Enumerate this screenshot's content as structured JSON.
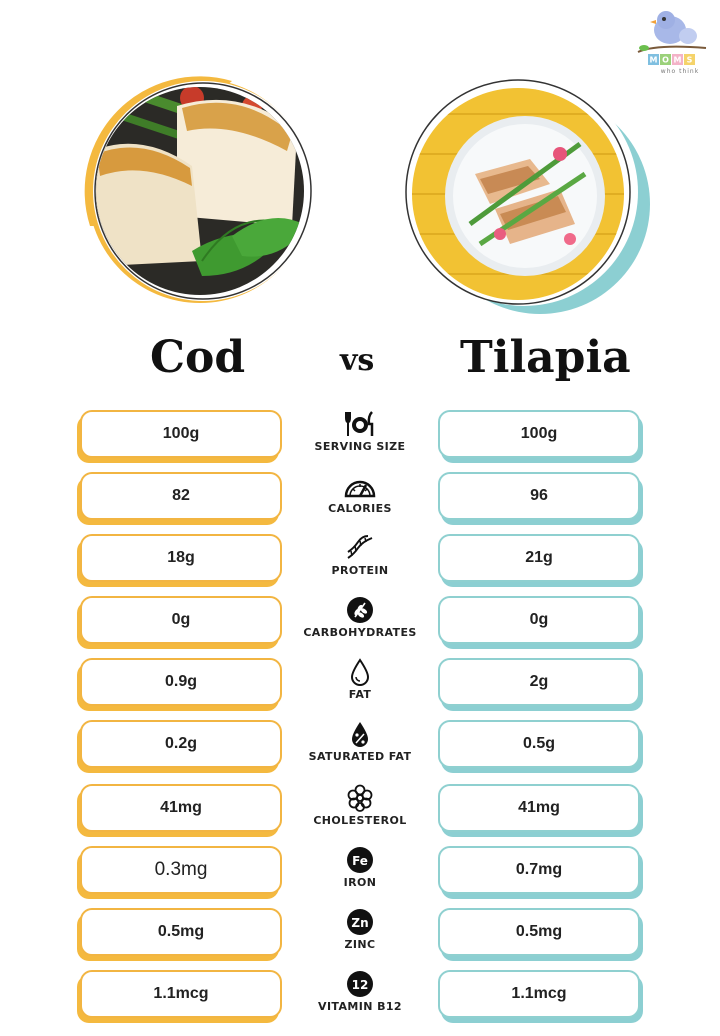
{
  "brand": {
    "name": "MOMS",
    "tagline": "who think",
    "letters": [
      "M",
      "O",
      "M",
      "S"
    ]
  },
  "titles": {
    "left": "Cod",
    "vs": "vs",
    "right": "Tilapia"
  },
  "colors": {
    "cod_accent": "#f4b93f",
    "tilapia_accent": "#8ccfd2",
    "text": "#111111"
  },
  "rows": [
    {
      "label": "SERVING SIZE",
      "icon": "plate-fork-knife-icon",
      "cod": "100g",
      "tilapia": "100g"
    },
    {
      "label": "CALORIES",
      "icon": "speedometer-icon",
      "cod": "82",
      "tilapia": "96"
    },
    {
      "label": "PROTEIN",
      "icon": "dna-icon",
      "cod": "18g",
      "tilapia": "21g"
    },
    {
      "label": "CARBOHYDRATES",
      "icon": "wheat-icon",
      "cod": "0g",
      "tilapia": "0g"
    },
    {
      "label": "FAT",
      "icon": "drop-icon",
      "cod": "0.9g",
      "tilapia": "2g"
    },
    {
      "label": "SATURATED FAT",
      "icon": "drop-percent-icon",
      "cod": "0.2g",
      "tilapia": "0.5g"
    },
    {
      "label": "CHOLESTEROL",
      "icon": "molecule-icon",
      "cod": "41mg",
      "tilapia": "41mg"
    },
    {
      "label": "IRON",
      "icon": "fe-badge-icon",
      "badge": "Fe",
      "cod": "0.3mg",
      "tilapia": "0.7mg"
    },
    {
      "label": "ZINC",
      "icon": "zn-badge-icon",
      "badge": "Zn",
      "cod": "0.5mg",
      "tilapia": "0.5mg"
    },
    {
      "label": "VITAMIN B12",
      "icon": "b12-badge-icon",
      "badge": "12",
      "cod": "1.1mcg",
      "tilapia": "1.1mcg"
    }
  ]
}
